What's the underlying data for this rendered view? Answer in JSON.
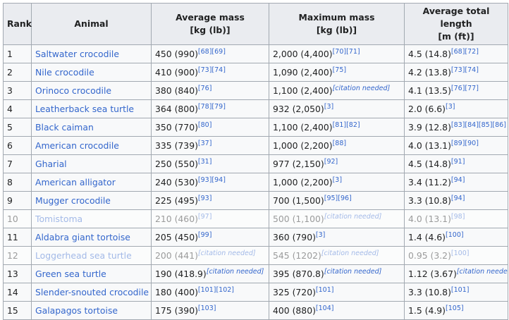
{
  "headers": {
    "rank": "Rank",
    "animal": "Animal",
    "avg_mass": [
      "Average mass",
      "[kg (lb)]"
    ],
    "max_mass": [
      "Maximum mass",
      "[kg (lb)]"
    ],
    "avg_length": [
      "Average total length",
      "[m (ft)]"
    ]
  },
  "rows": [
    {
      "rank": "1",
      "animal": "Saltwater crocodile",
      "avg": "450 (990)",
      "avg_ref": "[68][69]",
      "max": "2,000 (4,400)",
      "max_ref": "[70][71]",
      "len": "4.5 (14.8)",
      "len_ref": "[68][72]"
    },
    {
      "rank": "2",
      "animal": "Nile crocodile",
      "avg": "410 (900)",
      "avg_ref": "[73][74]",
      "max": "1,090 (2,400)",
      "max_ref": "[75]",
      "len": "4.2 (13.8)",
      "len_ref": "[73][74]"
    },
    {
      "rank": "3",
      "animal": "Orinoco crocodile",
      "avg": "380 (840)",
      "avg_ref": "[76]",
      "max": "1,100 (2,400)",
      "max_ref": "[citation needed]",
      "len": "4.1 (13.5)",
      "len_ref": "[76][77]"
    },
    {
      "rank": "4",
      "animal": "Leatherback sea turtle",
      "avg": "364 (800)",
      "avg_ref": "[78][79]",
      "max": "932 (2,050)",
      "max_ref": "[3]",
      "len": "2.0 (6.6)",
      "len_ref": "[3]"
    },
    {
      "rank": "5",
      "animal": "Black caiman",
      "avg": "350 (770)",
      "avg_ref": "[80]",
      "max": "1,100 (2,400)",
      "max_ref": "[81][82]",
      "len": "3.9 (12.8)",
      "len_ref": "[83][84][85][86]"
    },
    {
      "rank": "6",
      "animal": "American crocodile",
      "avg": "335 (739)",
      "avg_ref": "[37]",
      "max": "1,000 (2,200)",
      "max_ref": "[88]",
      "len": "4.0 (13.1)",
      "len_ref": "[89][90]"
    },
    {
      "rank": "7",
      "animal": "Gharial",
      "avg": "250 (550)",
      "avg_ref": "[31]",
      "max": "977 (2,150)",
      "max_ref": "[92]",
      "len": "4.5 (14.8)",
      "len_ref": "[91]"
    },
    {
      "rank": "8",
      "animal": "American alligator",
      "avg": "240 (530)",
      "avg_ref": "[93][94]",
      "max": "1,000 (2,200)",
      "max_ref": "[3]",
      "len": "3.4 (11.2)",
      "len_ref": "[94]"
    },
    {
      "rank": "9",
      "animal": "Mugger crocodile",
      "avg": "225 (495)",
      "avg_ref": "[93]",
      "max": "700 (1,500)",
      "max_ref": "[95][96]",
      "len": "3.3 (10.8)",
      "len_ref": "[94]"
    },
    {
      "rank": "10",
      "animal": "Tomistoma",
      "avg": "210 (460)",
      "avg_ref": "[97]",
      "max": "500 (1,100)",
      "max_ref": "[citation needed]",
      "len": "4.0 (13.1)",
      "len_ref": "[98]",
      "faded": true
    },
    {
      "rank": "11",
      "animal": "Aldabra giant tortoise",
      "avg": "205 (450)",
      "avg_ref": "[99]",
      "max": "360 (790)",
      "max_ref": "[3]",
      "len": "1.4 (4.6)",
      "len_ref": "[100]"
    },
    {
      "rank": "12",
      "animal": "Loggerhead sea turtle",
      "avg": "200 (441)",
      "avg_ref": "[citation needed]",
      "max": "545 (1202)",
      "max_ref": "[citation needed]",
      "len": "0.95 (3.2)",
      "len_ref": "[100]",
      "faded": true
    },
    {
      "rank": "13",
      "animal": "Green sea turtle",
      "avg": "190 (418.9)",
      "avg_ref": "[citation needed]",
      "max": "395 (870.8)",
      "max_ref": "[citation needed]",
      "len": "1.12 (3.67)",
      "len_ref": "[citation needed]"
    },
    {
      "rank": "14",
      "animal": "Slender-snouted crocodile",
      "avg": "180 (400)",
      "avg_ref": "[101][102]",
      "max": "325 (720)",
      "max_ref": "[101]",
      "len": "3.3 (10.8)",
      "len_ref": "[101]"
    },
    {
      "rank": "15",
      "animal": "Galapagos tortoise",
      "avg": "175 (390)",
      "avg_ref": "[103]",
      "max": "400 (880)",
      "max_ref": "[104]",
      "len": "1.5 (4.9)",
      "len_ref": "[105]"
    }
  ]
}
